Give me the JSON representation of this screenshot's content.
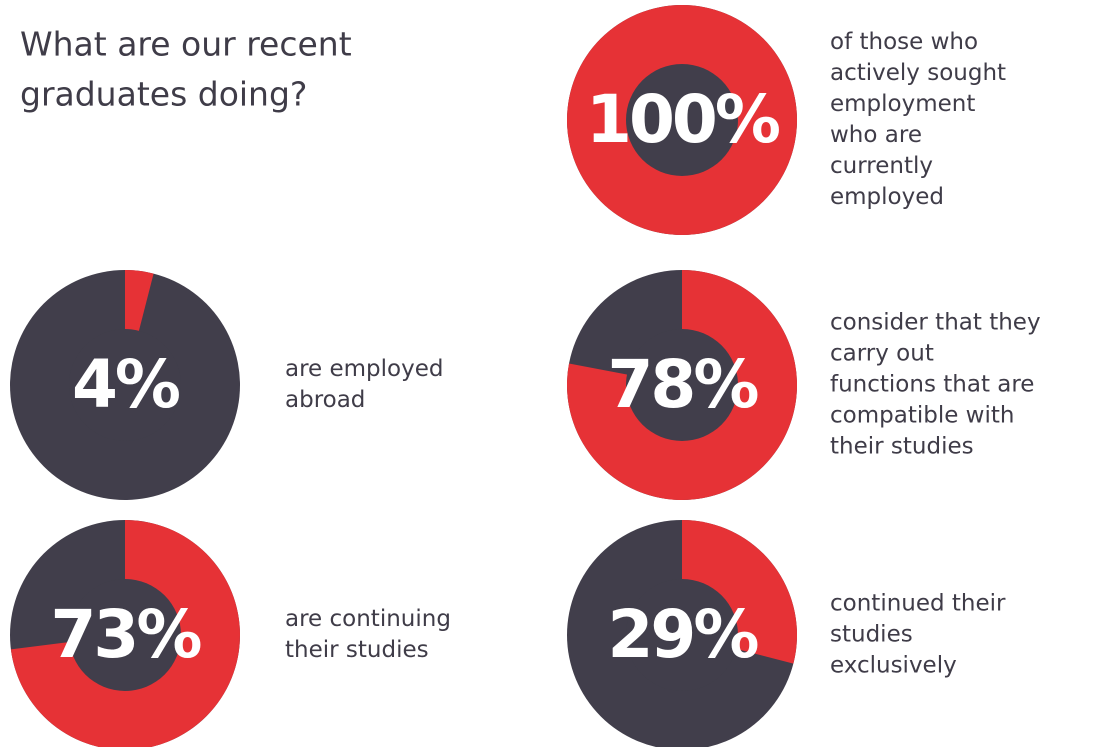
{
  "title": [
    "What are our recent",
    "graduates doing?"
  ],
  "chart_data": [
    {
      "type": "donut",
      "values": [
        100
      ],
      "value_labels": [
        "100%"
      ],
      "color": "#e63236",
      "rest_color": "#413e4b",
      "caption": [
        "of those who",
        "actively sought",
        "employment",
        "who are",
        "currently",
        "employed"
      ]
    },
    {
      "type": "donut",
      "values": [
        4
      ],
      "value_labels": [
        "4%"
      ],
      "color": "#e63236",
      "rest_color": "#413e4b",
      "caption": [
        "are employed",
        "abroad"
      ]
    },
    {
      "type": "donut",
      "values": [
        78
      ],
      "value_labels": [
        "78%"
      ],
      "color": "#e63236",
      "rest_color": "#413e4b",
      "caption": [
        "consider that they",
        "carry out",
        "functions that are",
        "compatible with",
        "their studies"
      ]
    },
    {
      "type": "donut",
      "values": [
        73
      ],
      "value_labels": [
        "73%"
      ],
      "color": "#e63236",
      "rest_color": "#413e4b",
      "caption": [
        "are continuing",
        "their studies"
      ]
    },
    {
      "type": "donut",
      "values": [
        29
      ],
      "value_labels": [
        "29%"
      ],
      "color": "#e63236",
      "rest_color": "#413e4b",
      "caption": [
        "continued their",
        "studies",
        "exclusively"
      ]
    }
  ]
}
